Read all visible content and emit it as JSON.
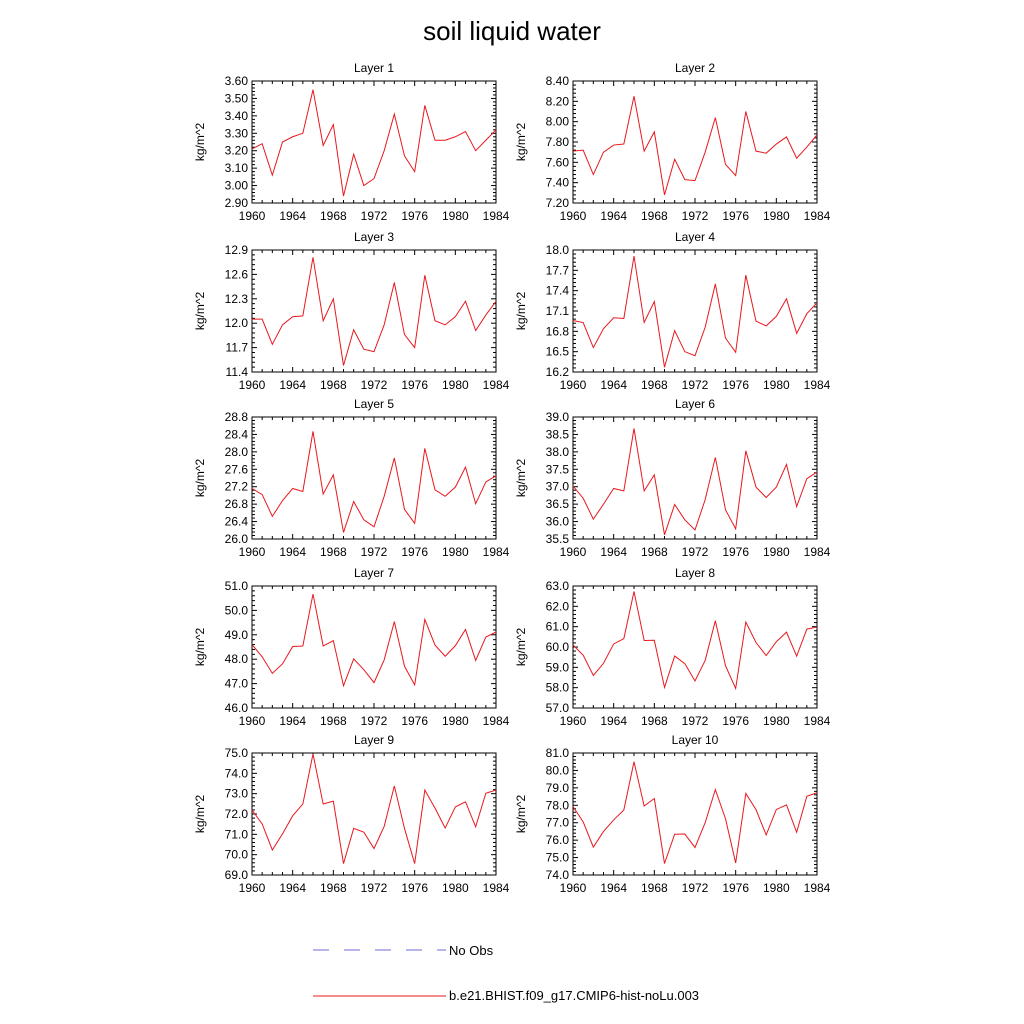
{
  "title": "soil liquid water",
  "legend": {
    "obs_label": "No Obs",
    "obs_color": "#6b6bd6",
    "model_label": "b.e21.BHIST.f09_g17.CMIP6-hist-noLu.003",
    "model_color": "#e8181e"
  },
  "chart_data": [
    {
      "type": "line",
      "title": "Layer 1",
      "ylabel": "kg/m^2",
      "xlabel": "",
      "xlim": [
        1960,
        1984
      ],
      "xticks": [
        1960,
        1964,
        1968,
        1972,
        1976,
        1980,
        1984
      ],
      "ylim": [
        2.9,
        3.6
      ],
      "yticks": [
        "2.90",
        "3.00",
        "3.10",
        "3.20",
        "3.30",
        "3.40",
        "3.50",
        "3.60"
      ],
      "x": [
        1960,
        1961,
        1962,
        1963,
        1964,
        1965,
        1966,
        1967,
        1968,
        1969,
        1970,
        1971,
        1972,
        1973,
        1974,
        1975,
        1976,
        1977,
        1978,
        1979,
        1980,
        1981,
        1982,
        1983,
        1984
      ],
      "series": [
        {
          "name": "b.e21.BHIST.f09_g17.CMIP6-hist-noLu.003",
          "values": [
            3.21,
            3.24,
            3.06,
            3.25,
            3.28,
            3.3,
            3.55,
            3.23,
            3.35,
            2.94,
            3.18,
            3.0,
            3.04,
            3.2,
            3.41,
            3.17,
            3.08,
            3.46,
            3.26,
            3.26,
            3.28,
            3.31,
            3.2,
            3.26,
            3.32
          ]
        }
      ]
    },
    {
      "type": "line",
      "title": "Layer 2",
      "ylabel": "kg/m^2",
      "xlabel": "",
      "xlim": [
        1960,
        1984
      ],
      "xticks": [
        1960,
        1964,
        1968,
        1972,
        1976,
        1980,
        1984
      ],
      "ylim": [
        7.2,
        8.4
      ],
      "yticks": [
        "7.20",
        "7.40",
        "7.60",
        "7.80",
        "8.00",
        "8.20",
        "8.40"
      ],
      "x": [
        1960,
        1961,
        1962,
        1963,
        1964,
        1965,
        1966,
        1967,
        1968,
        1969,
        1970,
        1971,
        1972,
        1973,
        1974,
        1975,
        1976,
        1977,
        1978,
        1979,
        1980,
        1981,
        1982,
        1983,
        1984
      ],
      "series": [
        {
          "name": "b.e21.BHIST.f09_g17.CMIP6-hist-noLu.003",
          "values": [
            7.71,
            7.72,
            7.48,
            7.7,
            7.77,
            7.78,
            8.25,
            7.71,
            7.9,
            7.28,
            7.63,
            7.43,
            7.42,
            7.7,
            8.04,
            7.58,
            7.47,
            8.1,
            7.71,
            7.69,
            7.78,
            7.85,
            7.64,
            7.75,
            7.87
          ]
        }
      ]
    },
    {
      "type": "line",
      "title": "Layer 3",
      "ylabel": "kg/m^2",
      "xlabel": "",
      "xlim": [
        1960,
        1984
      ],
      "xticks": [
        1960,
        1964,
        1968,
        1972,
        1976,
        1980,
        1984
      ],
      "ylim": [
        11.4,
        12.9
      ],
      "yticks": [
        "11.4",
        "11.7",
        "12.0",
        "12.3",
        "12.6",
        "12.9"
      ],
      "x": [
        1960,
        1961,
        1962,
        1963,
        1964,
        1965,
        1966,
        1967,
        1968,
        1969,
        1970,
        1971,
        1972,
        1973,
        1974,
        1975,
        1976,
        1977,
        1978,
        1979,
        1980,
        1981,
        1982,
        1983,
        1984
      ],
      "series": [
        {
          "name": "b.e21.BHIST.f09_g17.CMIP6-hist-noLu.003",
          "values": [
            12.05,
            12.05,
            11.74,
            11.98,
            12.08,
            12.09,
            12.81,
            12.03,
            12.3,
            11.48,
            11.92,
            11.68,
            11.65,
            11.98,
            12.5,
            11.86,
            11.7,
            12.59,
            12.03,
            11.98,
            12.08,
            12.27,
            11.91,
            12.1,
            12.27
          ]
        }
      ]
    },
    {
      "type": "line",
      "title": "Layer 4",
      "ylabel": "kg/m^2",
      "xlabel": "",
      "xlim": [
        1960,
        1984
      ],
      "xticks": [
        1960,
        1964,
        1968,
        1972,
        1976,
        1980,
        1984
      ],
      "ylim": [
        16.2,
        18.0
      ],
      "yticks": [
        "16.2",
        "16.5",
        "16.8",
        "17.1",
        "17.4",
        "17.7",
        "18.0"
      ],
      "x": [
        1960,
        1961,
        1962,
        1963,
        1964,
        1965,
        1966,
        1967,
        1968,
        1969,
        1970,
        1971,
        1972,
        1973,
        1974,
        1975,
        1976,
        1977,
        1978,
        1979,
        1980,
        1981,
        1982,
        1983,
        1984
      ],
      "series": [
        {
          "name": "b.e21.BHIST.f09_g17.CMIP6-hist-noLu.003",
          "values": [
            16.96,
            16.93,
            16.56,
            16.84,
            17.0,
            16.99,
            17.91,
            16.93,
            17.24,
            16.27,
            16.81,
            16.5,
            16.44,
            16.86,
            17.5,
            16.7,
            16.49,
            17.63,
            16.95,
            16.88,
            17.02,
            17.28,
            16.77,
            17.06,
            17.22
          ]
        }
      ]
    },
    {
      "type": "line",
      "title": "Layer 5",
      "ylabel": "kg/m^2",
      "xlabel": "",
      "xlim": [
        1960,
        1984
      ],
      "xticks": [
        1960,
        1964,
        1968,
        1972,
        1976,
        1980,
        1984
      ],
      "ylim": [
        26.0,
        28.8
      ],
      "yticks": [
        "26.0",
        "26.4",
        "26.8",
        "27.2",
        "27.6",
        "28.0",
        "28.4",
        "28.8"
      ],
      "x": [
        1960,
        1961,
        1962,
        1963,
        1964,
        1965,
        1966,
        1967,
        1968,
        1969,
        1970,
        1971,
        1972,
        1973,
        1974,
        1975,
        1976,
        1977,
        1978,
        1979,
        1980,
        1981,
        1982,
        1983,
        1984
      ],
      "series": [
        {
          "name": "b.e21.BHIST.f09_g17.CMIP6-hist-noLu.003",
          "values": [
            27.16,
            27.02,
            26.52,
            26.88,
            27.16,
            27.09,
            28.47,
            27.03,
            27.47,
            26.15,
            26.86,
            26.44,
            26.28,
            26.98,
            27.86,
            26.68,
            26.36,
            28.08,
            27.13,
            26.98,
            27.19,
            27.65,
            26.81,
            27.31,
            27.45
          ]
        }
      ]
    },
    {
      "type": "line",
      "title": "Layer 6",
      "ylabel": "kg/m^2",
      "xlabel": "",
      "xlim": [
        1960,
        1984
      ],
      "xticks": [
        1960,
        1964,
        1968,
        1972,
        1976,
        1980,
        1984
      ],
      "ylim": [
        35.5,
        39.0
      ],
      "yticks": [
        "35.5",
        "36.0",
        "36.5",
        "37.0",
        "37.5",
        "38.0",
        "38.5",
        "39.0"
      ],
      "x": [
        1960,
        1961,
        1962,
        1963,
        1964,
        1965,
        1966,
        1967,
        1968,
        1969,
        1970,
        1971,
        1972,
        1973,
        1974,
        1975,
        1976,
        1977,
        1978,
        1979,
        1980,
        1981,
        1982,
        1983,
        1984
      ],
      "series": [
        {
          "name": "b.e21.BHIST.f09_g17.CMIP6-hist-noLu.003",
          "values": [
            37.02,
            36.67,
            36.07,
            36.5,
            36.95,
            36.88,
            38.67,
            36.88,
            37.34,
            35.62,
            36.49,
            36.05,
            35.76,
            36.63,
            37.84,
            36.34,
            35.79,
            38.03,
            36.99,
            36.69,
            36.99,
            37.64,
            36.43,
            37.23,
            37.42
          ]
        }
      ]
    },
    {
      "type": "line",
      "title": "Layer 7",
      "ylabel": "kg/m^2",
      "xlabel": "",
      "xlim": [
        1960,
        1984
      ],
      "xticks": [
        1960,
        1964,
        1968,
        1972,
        1976,
        1980,
        1984
      ],
      "ylim": [
        46.0,
        51.0
      ],
      "yticks": [
        "46.0",
        "47.0",
        "48.0",
        "49.0",
        "50.0",
        "51.0"
      ],
      "x": [
        1960,
        1961,
        1962,
        1963,
        1964,
        1965,
        1966,
        1967,
        1968,
        1969,
        1970,
        1971,
        1972,
        1973,
        1974,
        1975,
        1976,
        1977,
        1978,
        1979,
        1980,
        1981,
        1982,
        1983,
        1984
      ],
      "series": [
        {
          "name": "b.e21.BHIST.f09_g17.CMIP6-hist-noLu.003",
          "values": [
            48.6,
            48.1,
            47.42,
            47.81,
            48.52,
            48.54,
            50.67,
            48.54,
            48.76,
            46.91,
            48.01,
            47.57,
            47.04,
            47.97,
            49.54,
            47.71,
            46.95,
            49.63,
            48.58,
            48.12,
            48.55,
            49.22,
            47.95,
            48.91,
            49.11
          ]
        }
      ]
    },
    {
      "type": "line",
      "title": "Layer 8",
      "ylabel": "kg/m^2",
      "xlabel": "",
      "xlim": [
        1960,
        1984
      ],
      "xticks": [
        1960,
        1964,
        1968,
        1972,
        1976,
        1980,
        1984
      ],
      "ylim": [
        57.0,
        63.0
      ],
      "yticks": [
        "57.0",
        "58.0",
        "59.0",
        "60.0",
        "61.0",
        "62.0",
        "63.0"
      ],
      "x": [
        1960,
        1961,
        1962,
        1963,
        1964,
        1965,
        1966,
        1967,
        1968,
        1969,
        1970,
        1971,
        1972,
        1973,
        1974,
        1975,
        1976,
        1977,
        1978,
        1979,
        1980,
        1981,
        1982,
        1983,
        1984
      ],
      "series": [
        {
          "name": "b.e21.BHIST.f09_g17.CMIP6-hist-noLu.003",
          "values": [
            60.1,
            59.6,
            58.6,
            59.2,
            60.15,
            60.41,
            62.73,
            60.32,
            60.33,
            58.01,
            59.56,
            59.18,
            58.33,
            59.34,
            61.29,
            59.08,
            57.96,
            61.23,
            60.22,
            59.58,
            60.26,
            60.73,
            59.55,
            60.88,
            60.98
          ]
        }
      ]
    },
    {
      "type": "line",
      "title": "Layer 9",
      "ylabel": "kg/m^2",
      "xlabel": "",
      "xlim": [
        1960,
        1984
      ],
      "xticks": [
        1960,
        1964,
        1968,
        1972,
        1976,
        1980,
        1984
      ],
      "ylim": [
        69.0,
        75.0
      ],
      "yticks": [
        "69.0",
        "70.0",
        "71.0",
        "72.0",
        "73.0",
        "74.0",
        "75.0"
      ],
      "x": [
        1960,
        1961,
        1962,
        1963,
        1964,
        1965,
        1966,
        1967,
        1968,
        1969,
        1970,
        1971,
        1972,
        1973,
        1974,
        1975,
        1976,
        1977,
        1978,
        1979,
        1980,
        1981,
        1982,
        1983,
        1984
      ],
      "series": [
        {
          "name": "b.e21.BHIST.f09_g17.CMIP6-hist-noLu.003",
          "values": [
            72.2,
            71.51,
            70.23,
            71.02,
            71.91,
            72.49,
            74.95,
            72.49,
            72.63,
            69.56,
            71.29,
            71.11,
            70.3,
            71.39,
            73.38,
            71.29,
            69.56,
            73.18,
            72.29,
            71.31,
            72.35,
            72.6,
            71.37,
            73.02,
            73.18
          ]
        }
      ]
    },
    {
      "type": "line",
      "title": "Layer 10",
      "ylabel": "kg/m^2",
      "xlabel": "",
      "xlim": [
        1960,
        1984
      ],
      "xticks": [
        1960,
        1964,
        1968,
        1972,
        1976,
        1980,
        1984
      ],
      "ylim": [
        74.0,
        81.0
      ],
      "yticks": [
        "74.0",
        "75.0",
        "76.0",
        "77.0",
        "78.0",
        "79.0",
        "80.0",
        "81.0"
      ],
      "x": [
        1960,
        1961,
        1962,
        1963,
        1964,
        1965,
        1966,
        1967,
        1968,
        1969,
        1970,
        1971,
        1972,
        1973,
        1974,
        1975,
        1976,
        1977,
        1978,
        1979,
        1980,
        1981,
        1982,
        1983,
        1984
      ],
      "series": [
        {
          "name": "b.e21.BHIST.f09_g17.CMIP6-hist-noLu.003",
          "values": [
            77.93,
            77.05,
            75.6,
            76.5,
            77.16,
            77.73,
            80.5,
            77.96,
            78.39,
            74.66,
            76.34,
            76.35,
            75.58,
            77.0,
            78.9,
            77.23,
            74.69,
            78.68,
            77.75,
            76.3,
            77.76,
            78.02,
            76.45,
            78.52,
            78.72
          ]
        }
      ]
    }
  ]
}
